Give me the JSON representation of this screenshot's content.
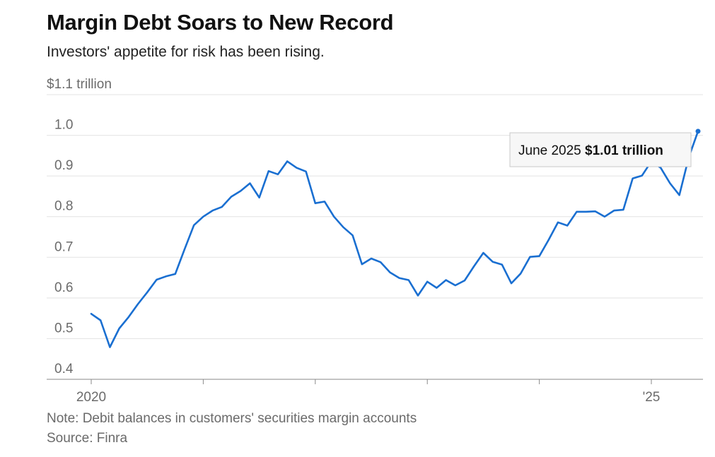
{
  "title": "Margin Debt Soars to New Record",
  "subtitle": "Investors' appetite for risk has been rising.",
  "note": "Note: Debit balances in customers' securities margin accounts",
  "source": "Source: Finra",
  "colors": {
    "line": "#1a6fd1",
    "grid": "#e3e3e3",
    "axis": "#8a8a8a"
  },
  "chart_data": {
    "type": "line",
    "ylim": [
      0.4,
      1.1
    ],
    "yticks": [
      {
        "value": 1.1,
        "label": "$1.1 trillion"
      },
      {
        "value": 1.0,
        "label": "1.0"
      },
      {
        "value": 0.9,
        "label": "0.9"
      },
      {
        "value": 0.8,
        "label": "0.8"
      },
      {
        "value": 0.7,
        "label": "0.7"
      },
      {
        "value": 0.6,
        "label": "0.6"
      },
      {
        "value": 0.5,
        "label": "0.5"
      },
      {
        "value": 0.4,
        "label": "0.4"
      }
    ],
    "xlim": [
      "2019-12",
      "2025-08"
    ],
    "xticks": [
      {
        "date": "2020-01",
        "label": "2020"
      },
      {
        "date": "2021-01",
        "label": ""
      },
      {
        "date": "2022-01",
        "label": ""
      },
      {
        "date": "2023-01",
        "label": ""
      },
      {
        "date": "2024-01",
        "label": ""
      },
      {
        "date": "2025-01",
        "label": "'25"
      }
    ],
    "grid": true,
    "series": [
      {
        "x": [
          "2020-01",
          "2020-02",
          "2020-03",
          "2020-04",
          "2020-05",
          "2020-06",
          "2020-07",
          "2020-08",
          "2020-09",
          "2020-10",
          "2020-11",
          "2020-12",
          "2021-01",
          "2021-02",
          "2021-03",
          "2021-04",
          "2021-05",
          "2021-06",
          "2021-07",
          "2021-08",
          "2021-09",
          "2021-10",
          "2021-11",
          "2021-12",
          "2022-01",
          "2022-02",
          "2022-03",
          "2022-04",
          "2022-05",
          "2022-06",
          "2022-07",
          "2022-08",
          "2022-09",
          "2022-10",
          "2022-11",
          "2022-12",
          "2023-01",
          "2023-02",
          "2023-03",
          "2023-04",
          "2023-05",
          "2023-06",
          "2023-07",
          "2023-08",
          "2023-09",
          "2023-10",
          "2023-11",
          "2023-12",
          "2024-01",
          "2024-02",
          "2024-03",
          "2024-04",
          "2024-05",
          "2024-06",
          "2024-07",
          "2024-08",
          "2024-09",
          "2024-10",
          "2024-11",
          "2024-12",
          "2025-01",
          "2025-02",
          "2025-03",
          "2025-04",
          "2025-05",
          "2025-06"
        ],
        "values": [
          0.561,
          0.545,
          0.479,
          0.525,
          0.553,
          0.585,
          0.614,
          0.645,
          0.653,
          0.659,
          0.72,
          0.779,
          0.8,
          0.815,
          0.824,
          0.849,
          0.863,
          0.882,
          0.847,
          0.912,
          0.904,
          0.936,
          0.92,
          0.911,
          0.833,
          0.837,
          0.8,
          0.774,
          0.754,
          0.683,
          0.697,
          0.688,
          0.663,
          0.649,
          0.644,
          0.606,
          0.64,
          0.625,
          0.644,
          0.631,
          0.643,
          0.678,
          0.711,
          0.689,
          0.682,
          0.636,
          0.66,
          0.701,
          0.703,
          0.743,
          0.786,
          0.778,
          0.812,
          0.812,
          0.813,
          0.8,
          0.815,
          0.817,
          0.894,
          0.901,
          0.936,
          0.92,
          0.882,
          0.853,
          0.945,
          1.01
        ]
      }
    ],
    "annotation": {
      "date_label": "June 2025",
      "value_label": "$1.01 trillion",
      "at": "2025-06"
    }
  }
}
